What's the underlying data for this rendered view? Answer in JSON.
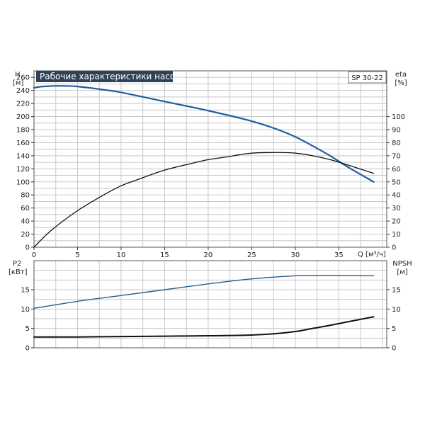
{
  "colors": {
    "head": "#1f5fa0",
    "eta": "#111111",
    "p2": "#2a5b8c",
    "npsh": "#111111",
    "title_bg": "#2f4256"
  },
  "chart_data": [
    {
      "id": "performance",
      "type": "line",
      "title": "Рабочие характеристики насоса",
      "model": "SP 30-22",
      "xlabel": "Q [м³/ч]",
      "x_ticks": [
        "0",
        "5",
        "10",
        "15",
        "20",
        "25",
        "30",
        "35"
      ],
      "xlim": [
        0,
        40.5
      ],
      "ylabel_left": "H",
      "ylabel_left_unit": "[м]",
      "ylim_left": [
        0,
        270
      ],
      "y_ticks_left": [
        "0",
        "20",
        "40",
        "60",
        "80",
        "100",
        "120",
        "140",
        "160",
        "180",
        "200",
        "220",
        "240",
        "260"
      ],
      "ylabel_right": "eta",
      "ylabel_right_unit": "[%]",
      "ylim_right": [
        0,
        135
      ],
      "y_ticks_right": [
        "0",
        "10",
        "20",
        "30",
        "40",
        "50",
        "60",
        "70",
        "80",
        "90",
        "100"
      ],
      "grid": true,
      "series": [
        {
          "key": "head",
          "axis": "left",
          "x": [
            0,
            1,
            3,
            5,
            8,
            10,
            15,
            20,
            25,
            28,
            30,
            32,
            34,
            36,
            39
          ],
          "y": [
            244,
            246,
            247,
            246,
            241,
            237,
            223,
            209,
            193,
            180,
            169,
            155,
            140,
            123,
            100
          ]
        },
        {
          "key": "eta",
          "axis": "right",
          "x": [
            0,
            2,
            5,
            8,
            10,
            12,
            15,
            18,
            20,
            22,
            25,
            28,
            30,
            32,
            34,
            36,
            39
          ],
          "y": [
            0,
            13,
            28,
            40,
            47,
            52,
            59,
            64,
            67,
            69,
            72,
            72.5,
            72,
            70,
            67,
            63,
            56.5
          ]
        }
      ]
    },
    {
      "id": "power_npsh",
      "type": "line",
      "xlim": [
        0,
        40.5
      ],
      "ylabel_left": "P2",
      "ylabel_left_unit": "[кВт]",
      "ylim_left": [
        0,
        22.5
      ],
      "y_ticks_left": [
        "0",
        "5",
        "10",
        "15"
      ],
      "ylabel_right": "NPSH",
      "ylabel_right_unit": "[м]",
      "ylim_right": [
        0,
        22.5
      ],
      "y_ticks_right": [
        "0",
        "5",
        "10",
        "15"
      ],
      "grid": true,
      "series": [
        {
          "key": "p2",
          "axis": "left",
          "x": [
            0,
            5,
            10,
            15,
            20,
            25,
            30,
            32,
            35,
            39
          ],
          "y": [
            10.2,
            12.0,
            13.5,
            15.0,
            16.5,
            17.8,
            18.6,
            18.7,
            18.7,
            18.6
          ]
        },
        {
          "key": "npsh",
          "axis": "right",
          "x": [
            0,
            5,
            10,
            15,
            20,
            25,
            28,
            30,
            32,
            34,
            36,
            39
          ],
          "y": [
            2.8,
            2.8,
            2.9,
            3.0,
            3.1,
            3.3,
            3.7,
            4.2,
            5.0,
            5.8,
            6.7,
            8.0
          ]
        }
      ]
    }
  ]
}
